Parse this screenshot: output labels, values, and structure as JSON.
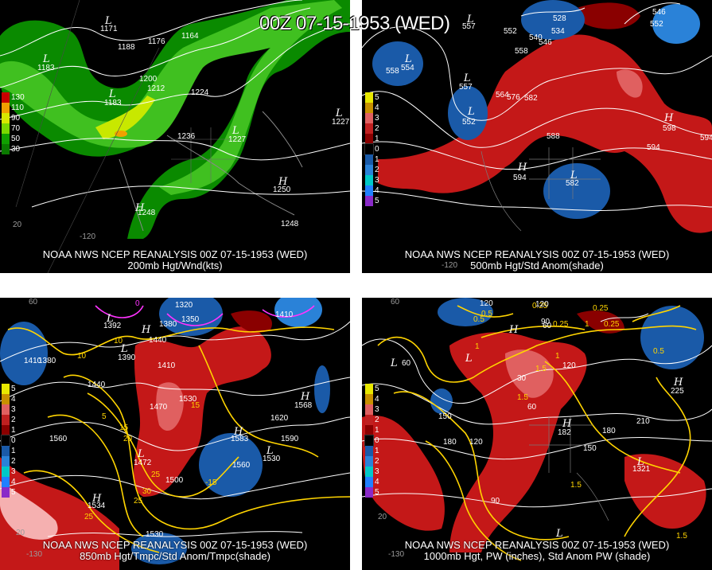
{
  "title": "00Z 07-15-1953 (WED)",
  "panels": {
    "top_left": {
      "caption1": "NOAA NWS NCEP REANALYSIS 00Z 07-15-1953 (WED)",
      "caption2": "200mb Hgt/Wnd(kts)",
      "legend": [
        {
          "label": "130",
          "color": "#c80000"
        },
        {
          "label": "110",
          "color": "#f0a000"
        },
        {
          "label": "90",
          "color": "#d8e800"
        },
        {
          "label": "70",
          "color": "#7ad800"
        },
        {
          "label": "50",
          "color": "#10a000"
        },
        {
          "label": "30",
          "color": "#0a7a00"
        }
      ],
      "contour_labels": [
        "1176",
        "1164",
        "1188",
        "1200",
        "1212",
        "1224",
        "1236",
        "1248",
        "1248"
      ],
      "highs": [
        "H",
        "H"
      ],
      "high_values": [
        "1250",
        "1248"
      ],
      "lows": [
        "L",
        "L",
        "L",
        "L",
        "L"
      ],
      "low_values": [
        "1171",
        "1183",
        "1183",
        "1227",
        "1227"
      ],
      "latlon": [
        "20",
        "-120"
      ]
    },
    "top_right": {
      "caption1": "NOAA NWS NCEP REANALYSIS 00Z 07-15-1953 (WED)",
      "caption2": "500mb Hgt/Std Anom(shade)",
      "legend": [
        {
          "label": "5",
          "color": "#e8e800"
        },
        {
          "label": "4",
          "color": "#c89000"
        },
        {
          "label": "3",
          "color": "#e06060"
        },
        {
          "label": "2",
          "color": "#c02020"
        },
        {
          "label": "1",
          "color": "#8a0000"
        },
        {
          "label": "0",
          "color": "#000000"
        },
        {
          "label": "1",
          "color": "#1a5aa8"
        },
        {
          "label": "2",
          "color": "#2a82d8"
        },
        {
          "label": "3",
          "color": "#00c8c8"
        },
        {
          "label": "4",
          "color": "#2080ff"
        },
        {
          "label": "5",
          "color": "#8a2ac8"
        }
      ],
      "contour_labels": [
        "528",
        "534",
        "546",
        "552",
        "558",
        "540",
        "552",
        "558",
        "564",
        "576",
        "582",
        "588",
        "594",
        "594",
        "546"
      ],
      "highs": [
        "H",
        "H"
      ],
      "high_values": [
        "598",
        "594"
      ],
      "lows": [
        "L",
        "L",
        "L",
        "L",
        "L"
      ],
      "low_values": [
        "554",
        "557",
        "552",
        "557",
        "582"
      ],
      "latlon": [
        "-120"
      ]
    },
    "bottom_left": {
      "caption1": "NOAA NWS NCEP REANALYSIS 00Z 07-15-1953 (WED)",
      "caption2": "850mb Hgt/Tmpc/Std Anom/Tmpc(shade)",
      "legend": [
        {
          "label": "5",
          "color": "#e8e800"
        },
        {
          "label": "4",
          "color": "#c89000"
        },
        {
          "label": "3",
          "color": "#e06060"
        },
        {
          "label": "2",
          "color": "#c02020"
        },
        {
          "label": "1",
          "color": "#8a0000"
        },
        {
          "label": "0",
          "color": "#000000"
        },
        {
          "label": "1",
          "color": "#1a5aa8"
        },
        {
          "label": "2",
          "color": "#2a82d8"
        },
        {
          "label": "3",
          "color": "#00c8c8"
        },
        {
          "label": "4",
          "color": "#2080ff"
        },
        {
          "label": "5",
          "color": "#8a2ac8"
        }
      ],
      "contour_labels": [
        "1320",
        "1350",
        "1380",
        "1440",
        "1410",
        "1410",
        "1440",
        "1470",
        "1530",
        "1500",
        "1560",
        "1620",
        "1590",
        "1560",
        "1530",
        "1410",
        "1380"
      ],
      "temp_labels": [
        "10",
        "10",
        "20",
        "25",
        "15",
        "30",
        "25",
        "15",
        "-15",
        "25",
        "5",
        "0"
      ],
      "highs": [
        "H",
        "H",
        "H",
        "H"
      ],
      "high_values": [
        "1568",
        "1583",
        "1534"
      ],
      "lows": [
        "L",
        "L",
        "L",
        "L"
      ],
      "low_values": [
        "1392",
        "1390",
        "1472",
        "1530"
      ],
      "latlon": [
        "60",
        "20",
        "-130"
      ]
    },
    "bottom_right": {
      "caption1": "NOAA NWS NCEP REANALYSIS 00Z 07-15-1953 (WED)",
      "caption2": "1000mb Hgt, PW (inches), Std Anom PW (shade)",
      "legend": [
        {
          "label": "5",
          "color": "#e8e800"
        },
        {
          "label": "4",
          "color": "#c89000"
        },
        {
          "label": "3",
          "color": "#e06060"
        },
        {
          "label": "2",
          "color": "#c02020"
        },
        {
          "label": "1",
          "color": "#8a0000"
        },
        {
          "label": "0",
          "color": "#000000"
        },
        {
          "label": "1",
          "color": "#1a5aa8"
        },
        {
          "label": "2",
          "color": "#2a82d8"
        },
        {
          "label": "3",
          "color": "#00c8c8"
        },
        {
          "label": "4",
          "color": "#2080ff"
        },
        {
          "label": "5",
          "color": "#8a2ac8"
        }
      ],
      "contour_labels": [
        "120",
        "60",
        "90",
        "30",
        "120",
        "60",
        "150",
        "180",
        "120",
        "150",
        "180",
        "210",
        "90",
        "60"
      ],
      "pw_labels": [
        "0.5",
        "0.25",
        "0.25",
        "0.25",
        "0.25",
        "1",
        "1.5",
        "1",
        "0.5",
        "1.5",
        "1",
        "0.5",
        "1.5",
        "1.5"
      ],
      "highs": [
        "H",
        "H",
        "H"
      ],
      "high_values": [
        "182",
        "225"
      ],
      "lows": [
        "L",
        "L",
        "L",
        "L"
      ],
      "low_values": [
        "1321"
      ],
      "latlon": [
        "60",
        "20",
        "-130",
        "120"
      ]
    }
  },
  "colors": {
    "background": "#000000",
    "contour": "#ffffff",
    "temp_contour": "#ffd400",
    "cold_contour": "#ff33ff",
    "jet_dark": "#0a8a00",
    "jet_mid": "#40c020",
    "jet_core": "#c8e800",
    "anom_pos": "#c41818",
    "anom_neg": "#1a5aa8"
  }
}
